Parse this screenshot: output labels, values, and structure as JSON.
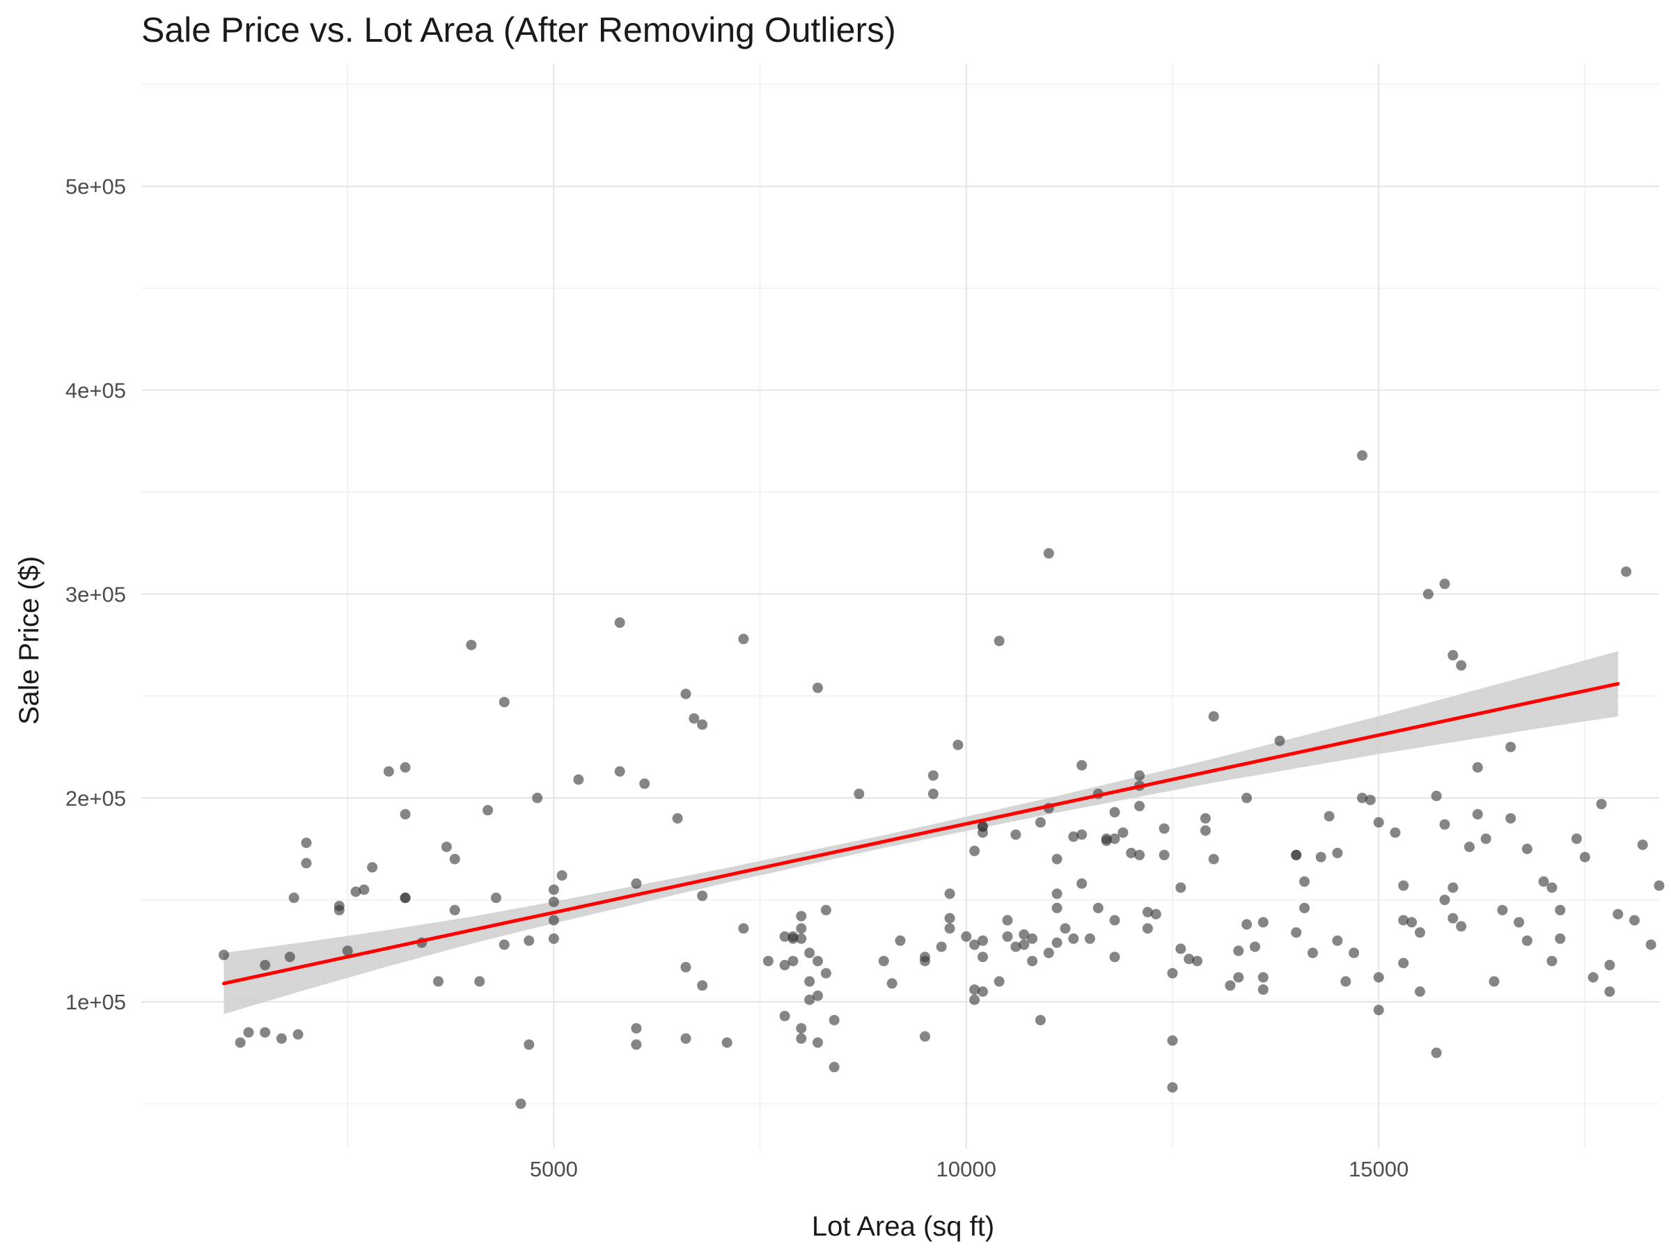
{
  "chart_data": {
    "type": "scatter",
    "title": "Sale Price vs. Lot Area (After Removing Outliers)",
    "xlabel": "Lot Area (sq ft)",
    "ylabel": "Sale Price ($)",
    "xlim": [
      0,
      18400
    ],
    "ylim": [
      28000,
      560000
    ],
    "x_ticks": [
      5000,
      10000,
      15000
    ],
    "x_tick_labels": [
      "5000",
      "10000",
      "15000"
    ],
    "y_ticks": [
      100000,
      200000,
      300000,
      400000,
      500000
    ],
    "y_tick_labels": [
      "1e+05",
      "2e+05",
      "3e+05",
      "4e+05",
      "5e+05"
    ],
    "grid": true,
    "point_color": "#333333",
    "point_opacity": 0.6,
    "trend_line": {
      "method": "linear",
      "color": "#ff0000",
      "band_color": "#d3d3d3",
      "x": [
        1000,
        2000,
        3000,
        4000,
        5000,
        6000,
        7000,
        8000,
        9000,
        10000,
        11000,
        12000,
        13000,
        14000,
        15000,
        16000,
        17000,
        17900
      ],
      "y": [
        109000,
        117700,
        126400,
        135100,
        143800,
        152500,
        161200,
        169900,
        178600,
        187300,
        196000,
        204700,
        213400,
        222100,
        230800,
        239500,
        248200,
        256000
      ],
      "lower": [
        94000,
        106000,
        117500,
        128500,
        138500,
        148000,
        157500,
        166500,
        175500,
        183800,
        192000,
        199800,
        207500,
        214500,
        221500,
        228000,
        234500,
        240000
      ],
      "upper": [
        124000,
        129400,
        135300,
        141700,
        149100,
        157000,
        164900,
        173300,
        181700,
        190800,
        200000,
        209600,
        219300,
        229700,
        240100,
        251000,
        261900,
        272000
      ]
    },
    "points": [
      [
        1000,
        123000
      ],
      [
        1200,
        80000
      ],
      [
        1300,
        85000
      ],
      [
        1500,
        118000
      ],
      [
        1500,
        85000
      ],
      [
        1700,
        82000
      ],
      [
        1800,
        122000
      ],
      [
        1850,
        151000
      ],
      [
        1900,
        84000
      ],
      [
        2000,
        168000
      ],
      [
        2000,
        178000
      ],
      [
        2400,
        145000
      ],
      [
        2400,
        147000
      ],
      [
        2500,
        125000
      ],
      [
        2600,
        154000
      ],
      [
        2700,
        155000
      ],
      [
        2800,
        166000
      ],
      [
        3000,
        213000
      ],
      [
        3200,
        192000
      ],
      [
        3200,
        215000
      ],
      [
        3200,
        151000
      ],
      [
        3200,
        151000
      ],
      [
        3400,
        129000
      ],
      [
        3600,
        110000
      ],
      [
        3700,
        176000
      ],
      [
        3800,
        145000
      ],
      [
        3800,
        170000
      ],
      [
        4000,
        275000
      ],
      [
        4100,
        110000
      ],
      [
        4200,
        194000
      ],
      [
        4300,
        151000
      ],
      [
        4400,
        128000
      ],
      [
        4400,
        247000
      ],
      [
        4600,
        50000
      ],
      [
        4700,
        79000
      ],
      [
        4700,
        130000
      ],
      [
        4800,
        200000
      ],
      [
        5000,
        131000
      ],
      [
        5000,
        140000
      ],
      [
        5000,
        149000
      ],
      [
        5000,
        155000
      ],
      [
        5100,
        162000
      ],
      [
        5300,
        209000
      ],
      [
        5800,
        286000
      ],
      [
        5800,
        213000
      ],
      [
        6000,
        87000
      ],
      [
        6000,
        79000
      ],
      [
        6000,
        158000
      ],
      [
        6100,
        207000
      ],
      [
        6500,
        190000
      ],
      [
        6600,
        117000
      ],
      [
        6600,
        82000
      ],
      [
        6600,
        251000
      ],
      [
        6700,
        239000
      ],
      [
        6800,
        236000
      ],
      [
        6800,
        152000
      ],
      [
        6800,
        108000
      ],
      [
        7100,
        80000
      ],
      [
        7300,
        136000
      ],
      [
        7300,
        278000
      ],
      [
        7600,
        120000
      ],
      [
        7800,
        93000
      ],
      [
        7800,
        132000
      ],
      [
        7800,
        118000
      ],
      [
        7900,
        131000
      ],
      [
        7900,
        132000
      ],
      [
        7900,
        120000
      ],
      [
        8000,
        142000
      ],
      [
        8000,
        136000
      ],
      [
        8000,
        131000
      ],
      [
        8000,
        82000
      ],
      [
        8000,
        87000
      ],
      [
        8100,
        124000
      ],
      [
        8100,
        110000
      ],
      [
        8100,
        101000
      ],
      [
        8200,
        120000
      ],
      [
        8200,
        80000
      ],
      [
        8200,
        103000
      ],
      [
        8200,
        254000
      ],
      [
        8300,
        145000
      ],
      [
        8300,
        114000
      ],
      [
        8400,
        91000
      ],
      [
        8400,
        68000
      ],
      [
        8700,
        202000
      ],
      [
        9000,
        120000
      ],
      [
        9100,
        109000
      ],
      [
        9200,
        130000
      ],
      [
        9500,
        83000
      ],
      [
        9500,
        122000
      ],
      [
        9500,
        120000
      ],
      [
        9600,
        202000
      ],
      [
        9600,
        211000
      ],
      [
        9700,
        127000
      ],
      [
        9800,
        136000
      ],
      [
        9800,
        153000
      ],
      [
        9800,
        141000
      ],
      [
        9900,
        226000
      ],
      [
        10000,
        132000
      ],
      [
        10100,
        128000
      ],
      [
        10100,
        174000
      ],
      [
        10100,
        101000
      ],
      [
        10100,
        106000
      ],
      [
        10200,
        105000
      ],
      [
        10200,
        186000
      ],
      [
        10200,
        186000
      ],
      [
        10200,
        183000
      ],
      [
        10200,
        130000
      ],
      [
        10200,
        122000
      ],
      [
        10400,
        110000
      ],
      [
        10400,
        277000
      ],
      [
        10500,
        140000
      ],
      [
        10500,
        132000
      ],
      [
        10600,
        182000
      ],
      [
        10600,
        127000
      ],
      [
        10700,
        128000
      ],
      [
        10700,
        133000
      ],
      [
        10800,
        120000
      ],
      [
        10800,
        131000
      ],
      [
        10900,
        188000
      ],
      [
        10900,
        91000
      ],
      [
        11000,
        195000
      ],
      [
        11000,
        320000
      ],
      [
        11000,
        124000
      ],
      [
        11100,
        170000
      ],
      [
        11100,
        153000
      ],
      [
        11100,
        146000
      ],
      [
        11100,
        129000
      ],
      [
        11200,
        136000
      ],
      [
        11300,
        181000
      ],
      [
        11300,
        131000
      ],
      [
        11400,
        182000
      ],
      [
        11400,
        216000
      ],
      [
        11400,
        158000
      ],
      [
        11500,
        131000
      ],
      [
        11600,
        146000
      ],
      [
        11600,
        202000
      ],
      [
        11700,
        179000
      ],
      [
        11700,
        180000
      ],
      [
        11800,
        180000
      ],
      [
        11800,
        193000
      ],
      [
        11800,
        140000
      ],
      [
        11800,
        122000
      ],
      [
        11900,
        183000
      ],
      [
        12000,
        173000
      ],
      [
        12100,
        196000
      ],
      [
        12100,
        211000
      ],
      [
        12100,
        206000
      ],
      [
        12100,
        172000
      ],
      [
        12200,
        144000
      ],
      [
        12200,
        136000
      ],
      [
        12300,
        143000
      ],
      [
        12400,
        172000
      ],
      [
        12400,
        185000
      ],
      [
        12500,
        58000
      ],
      [
        12500,
        81000
      ],
      [
        12500,
        114000
      ],
      [
        12600,
        126000
      ],
      [
        12600,
        156000
      ],
      [
        12700,
        121000
      ],
      [
        12800,
        120000
      ],
      [
        12900,
        190000
      ],
      [
        12900,
        184000
      ],
      [
        13000,
        170000
      ],
      [
        13000,
        240000
      ],
      [
        13200,
        108000
      ],
      [
        13300,
        125000
      ],
      [
        13300,
        112000
      ],
      [
        13400,
        138000
      ],
      [
        13400,
        200000
      ],
      [
        13500,
        127000
      ],
      [
        13600,
        139000
      ],
      [
        13600,
        106000
      ],
      [
        13600,
        112000
      ],
      [
        13800,
        228000
      ],
      [
        14000,
        172000
      ],
      [
        14000,
        134000
      ],
      [
        14000,
        172000
      ],
      [
        14100,
        146000
      ],
      [
        14100,
        159000
      ],
      [
        14200,
        124000
      ],
      [
        14300,
        171000
      ],
      [
        14400,
        191000
      ],
      [
        14500,
        130000
      ],
      [
        14500,
        173000
      ],
      [
        14600,
        110000
      ],
      [
        14700,
        124000
      ],
      [
        14800,
        200000
      ],
      [
        14800,
        368000
      ],
      [
        14900,
        199000
      ],
      [
        15000,
        96000
      ],
      [
        15000,
        112000
      ],
      [
        15000,
        188000
      ],
      [
        15200,
        183000
      ],
      [
        15300,
        119000
      ],
      [
        15300,
        140000
      ],
      [
        15300,
        157000
      ],
      [
        15400,
        139000
      ],
      [
        15500,
        105000
      ],
      [
        15500,
        134000
      ],
      [
        15600,
        300000
      ],
      [
        15700,
        75000
      ],
      [
        15700,
        201000
      ],
      [
        15800,
        305000
      ],
      [
        15800,
        187000
      ],
      [
        15800,
        150000
      ],
      [
        15900,
        270000
      ],
      [
        15900,
        156000
      ],
      [
        15900,
        141000
      ],
      [
        16000,
        265000
      ],
      [
        16000,
        137000
      ],
      [
        16100,
        176000
      ],
      [
        16200,
        192000
      ],
      [
        16200,
        215000
      ],
      [
        16300,
        180000
      ],
      [
        16400,
        110000
      ],
      [
        16500,
        145000
      ],
      [
        16600,
        225000
      ],
      [
        16600,
        190000
      ],
      [
        16700,
        139000
      ],
      [
        16800,
        130000
      ],
      [
        16800,
        175000
      ],
      [
        17000,
        159000
      ],
      [
        17100,
        156000
      ],
      [
        17100,
        120000
      ],
      [
        17200,
        145000
      ],
      [
        17200,
        131000
      ],
      [
        17400,
        180000
      ],
      [
        17500,
        171000
      ],
      [
        17600,
        112000
      ],
      [
        17700,
        197000
      ],
      [
        17800,
        118000
      ],
      [
        17800,
        105000
      ],
      [
        17900,
        143000
      ],
      [
        18000,
        311000
      ],
      [
        18100,
        140000
      ],
      [
        18200,
        177000
      ],
      [
        18300,
        128000
      ],
      [
        18400,
        157000
      ]
    ]
  }
}
